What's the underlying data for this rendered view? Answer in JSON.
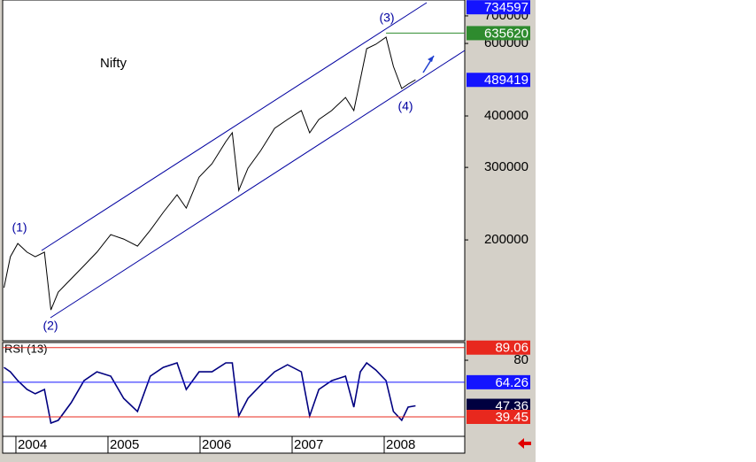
{
  "chart_data": [
    {
      "type": "line",
      "title": "Nifty",
      "log_scale": true,
      "color": "#000000",
      "x": [
        2003.87,
        2003.94,
        2004.02,
        2004.12,
        2004.21,
        2004.31,
        2004.38,
        2004.46,
        2004.6,
        2004.74,
        2004.88,
        2005.03,
        2005.17,
        2005.32,
        2005.46,
        2005.6,
        2005.75,
        2005.85,
        2005.99,
        2006.13,
        2006.28,
        2006.35,
        2006.42,
        2006.52,
        2006.66,
        2006.81,
        2006.95,
        2007.1,
        2007.19,
        2007.29,
        2007.43,
        2007.58,
        2007.67,
        2007.74,
        2007.81,
        2007.91,
        2008.02,
        2008.1,
        2008.19,
        2008.26,
        2008.34
      ],
      "values": [
        153100,
        182000,
        196000,
        186800,
        182000,
        186800,
        135200,
        149400,
        160900,
        173200,
        186800,
        206000,
        201000,
        193200,
        211200,
        233200,
        257400,
        239000,
        284200,
        306200,
        346600,
        364200,
        263800,
        298600,
        329800,
        373200,
        392200,
        412200,
        364200,
        392200,
        412200,
        443600,
        412200,
        490000,
        582600,
        597200,
        621400,
        527800,
        466400,
        478000,
        489419
      ],
      "xlim": [
        2003.856,
        2008.875
      ],
      "ylim": [
        113800,
        765000
      ],
      "yticks": [
        200000,
        300000,
        400000,
        600000,
        700000
      ],
      "markers": [
        {
          "value": 734597,
          "color": "#1414ff",
          "line": false
        },
        {
          "value": 635620,
          "color": "#2e8b2e",
          "line": true
        },
        {
          "value": 489419,
          "color": "#1414ff",
          "line": false
        }
      ],
      "annotations": [
        "(1)",
        "(2)",
        "(3)",
        "(4)"
      ]
    },
    {
      "type": "line",
      "title": "RSI (13)",
      "color": "#000080",
      "x": [
        2003.87,
        2003.94,
        2004.02,
        2004.12,
        2004.21,
        2004.31,
        2004.38,
        2004.46,
        2004.6,
        2004.74,
        2004.88,
        2005.03,
        2005.17,
        2005.32,
        2005.46,
        2005.6,
        2005.75,
        2005.85,
        2005.99,
        2006.13,
        2006.28,
        2006.35,
        2006.42,
        2006.52,
        2006.66,
        2006.81,
        2006.95,
        2007.1,
        2007.19,
        2007.29,
        2007.43,
        2007.58,
        2007.67,
        2007.74,
        2007.81,
        2007.91,
        2008.02,
        2008.1,
        2008.19,
        2008.26,
        2008.34
      ],
      "values": [
        74.9,
        71.7,
        65.4,
        59.1,
        56.0,
        59.1,
        35.0,
        37.0,
        49.6,
        65.4,
        71.7,
        68.6,
        52.7,
        43.3,
        68.6,
        74.9,
        78.1,
        59.1,
        71.7,
        71.7,
        78.1,
        78.1,
        40.1,
        52.7,
        62.2,
        71.7,
        76.8,
        71.7,
        40.1,
        59.1,
        65.4,
        68.6,
        46.4,
        71.7,
        78.1,
        73.0,
        65.4,
        43.3,
        37.0,
        46.4,
        47.36
      ],
      "xlim": [
        2003.856,
        2008.875
      ],
      "ylim": [
        25.5,
        92.7
      ],
      "xticks": [
        2004,
        2005,
        2006,
        2007,
        2008
      ],
      "yticks": [
        80
      ],
      "markers": [
        {
          "value": 89.06,
          "color": "#e8281e",
          "line": true
        },
        {
          "value": 64.26,
          "color": "#1414ff",
          "line": true
        },
        {
          "value": 47.36,
          "color": "#000040",
          "line": false
        },
        {
          "value": 39.45,
          "color": "#e8281e",
          "line": true
        }
      ]
    }
  ]
}
